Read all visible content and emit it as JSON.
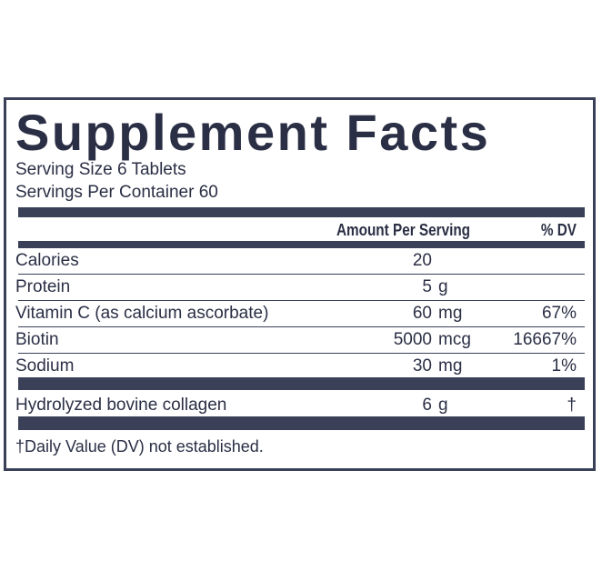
{
  "header": {
    "title": "Supplement Facts",
    "serving_size": "Serving Size 6 Tablets",
    "servings_per_container": "Servings Per Container 60"
  },
  "columns": {
    "amount": "Amount Per Serving",
    "dv": "% DV"
  },
  "rows": [
    {
      "name": "Calories",
      "amount": "20"
    },
    {
      "name": "Protein",
      "amount": "5",
      "unit": "g"
    },
    {
      "name": "Vitamin C (as calcium ascorbate)",
      "amount": "60",
      "unit": "mg",
      "dv": "67%"
    },
    {
      "name": "Biotin",
      "amount": "5000",
      "unit": "mcg",
      "dv": "16667%"
    },
    {
      "name": "Sodium",
      "amount": "30",
      "unit": "mg",
      "dv": "1%"
    }
  ],
  "other_rows": [
    {
      "name": "Hydrolyzed bovine collagen",
      "amount": "6",
      "unit": "g",
      "dv": "†"
    }
  ],
  "footnote": "†Daily Value (DV) not established."
}
